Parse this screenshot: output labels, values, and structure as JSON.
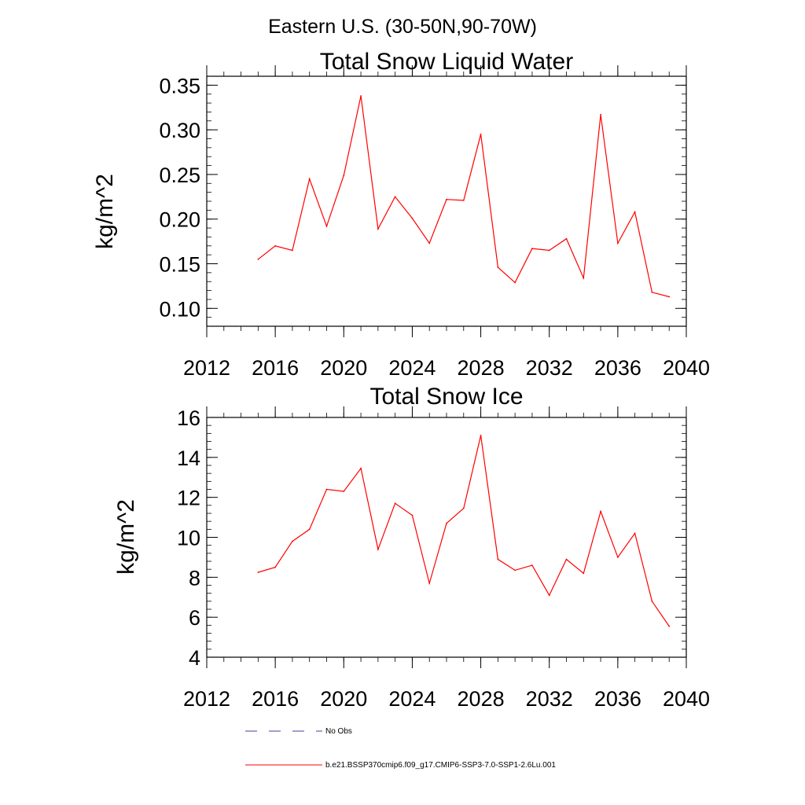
{
  "page_title": "Eastern U.S. (30-50N,90-70W)",
  "chart_data": [
    {
      "type": "line",
      "title": "Total Snow Liquid Water",
      "xlabel": "",
      "ylabel": "kg/m^2",
      "xlim": [
        2012,
        2040
      ],
      "ylim": [
        0.08,
        0.36
      ],
      "x_ticks": [
        2012,
        2016,
        2020,
        2024,
        2028,
        2032,
        2036,
        2040
      ],
      "x_tick_labels": [
        "2012",
        "2016",
        "2020",
        "2024",
        "2028",
        "2032",
        "2036",
        "2040"
      ],
      "y_ticks": [
        0.1,
        0.15,
        0.2,
        0.25,
        0.3,
        0.35
      ],
      "y_tick_labels": [
        "0.10",
        "0.15",
        "0.20",
        "0.25",
        "0.30",
        "0.35"
      ],
      "y_minor_step": 0.01,
      "x_minor_step": 1,
      "grid": false,
      "series": [
        {
          "name": "b.e21.BSSP370cmip6.f09_g17.CMIP6-SSP3-7.0-SSP1-2.6Lu.001",
          "color": "#ff0000",
          "x": [
            2015,
            2016,
            2017,
            2018,
            2019,
            2020,
            2021,
            2022,
            2023,
            2024,
            2025,
            2026,
            2027,
            2028,
            2029,
            2030,
            2031,
            2032,
            2033,
            2034,
            2035,
            2036,
            2037,
            2038,
            2039
          ],
          "values": [
            0.155,
            0.17,
            0.165,
            0.245,
            0.192,
            0.249,
            0.338,
            0.189,
            0.225,
            0.201,
            0.173,
            0.222,
            0.221,
            0.295,
            0.146,
            0.129,
            0.167,
            0.165,
            0.178,
            0.134,
            0.317,
            0.173,
            0.208,
            0.118,
            0.113
          ]
        }
      ]
    },
    {
      "type": "line",
      "title": "Total Snow Ice",
      "xlabel": "",
      "ylabel": "kg/m^2",
      "xlim": [
        2012,
        2040
      ],
      "ylim": [
        4,
        16
      ],
      "x_ticks": [
        2012,
        2016,
        2020,
        2024,
        2028,
        2032,
        2036,
        2040
      ],
      "x_tick_labels": [
        "2012",
        "2016",
        "2020",
        "2024",
        "2028",
        "2032",
        "2036",
        "2040"
      ],
      "y_ticks": [
        4,
        6,
        8,
        10,
        12,
        14,
        16
      ],
      "y_tick_labels": [
        "4",
        "6",
        "8",
        "10",
        "12",
        "14",
        "16"
      ],
      "y_minor_step": 0.4,
      "x_minor_step": 1,
      "grid": false,
      "series": [
        {
          "name": "b.e21.BSSP370cmip6.f09_g17.CMIP6-SSP3-7.0-SSP1-2.6Lu.001",
          "color": "#ff0000",
          "x": [
            2015,
            2016,
            2017,
            2018,
            2019,
            2020,
            2021,
            2022,
            2023,
            2024,
            2025,
            2026,
            2027,
            2028,
            2029,
            2030,
            2031,
            2032,
            2033,
            2034,
            2035,
            2036,
            2037,
            2038,
            2039
          ],
          "values": [
            8.25,
            8.5,
            9.8,
            10.4,
            12.4,
            12.3,
            13.45,
            9.4,
            11.7,
            11.1,
            7.7,
            10.7,
            11.45,
            15.1,
            8.9,
            8.35,
            8.6,
            7.1,
            8.9,
            8.2,
            11.3,
            9.0,
            10.2,
            6.8,
            5.55
          ]
        }
      ]
    }
  ],
  "legend": {
    "placement": "bottom",
    "entries": [
      {
        "label": "No Obs",
        "color": "#4040a0",
        "style": "dashed"
      },
      {
        "label": "b.e21.BSSP370cmip6.f09_g17.CMIP6-SSP3-7.0-SSP1-2.6Lu.001",
        "color": "#ff0000",
        "style": "solid"
      }
    ]
  }
}
